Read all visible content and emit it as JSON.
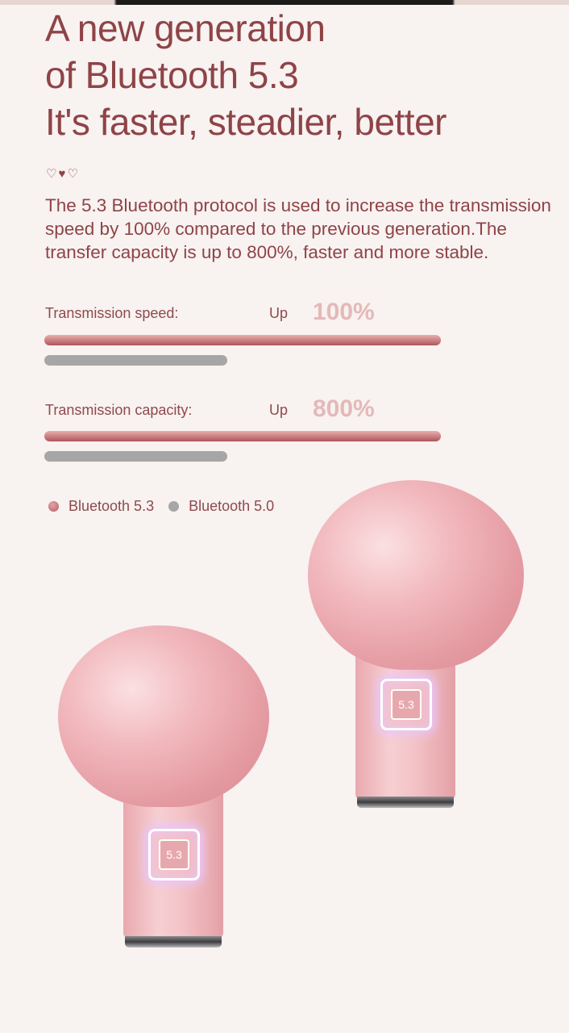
{
  "headline": {
    "line1": "A new generation",
    "line2": "of Bluetooth 5.3",
    "line3": "It's faster, steadier, better"
  },
  "hearts": "♡♥♡",
  "description": "The 5.3 Bluetooth protocol is used to increase the transmission speed by 100% compared to the previous generation.The transfer capacity is up to 800%, faster and more stable.",
  "comparisons": [
    {
      "label": "Transmission speed:",
      "up": "Up",
      "value": "100%"
    },
    {
      "label": "Transmission capacity:",
      "up": "Up",
      "value": "800%"
    }
  ],
  "legend": [
    {
      "label": "Bluetooth 5.3",
      "color": "#c0686c"
    },
    {
      "label": "Bluetooth 5.0",
      "color": "#a6a6a7"
    }
  ],
  "chip_label": "5.3",
  "colors": {
    "text": "#8e4447",
    "background": "#f8f2f1",
    "accent_value": "#e3b9b8"
  }
}
